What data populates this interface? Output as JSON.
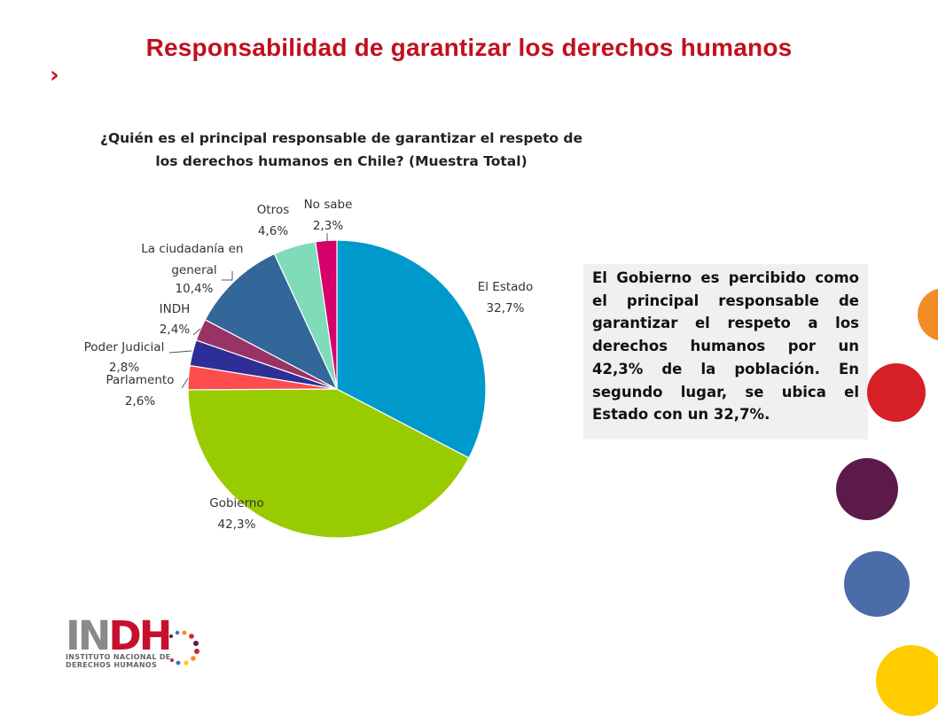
{
  "slide": {
    "title": "Responsabilidad de garantizar los derechos humanos",
    "chevron": "›"
  },
  "chart_title_line1": "¿Quién es el principal responsable de garantizar el respeto de",
  "chart_title_line2": "los derechos humanos  en Chile? (Muestra Total)",
  "chart_data": {
    "type": "pie",
    "title": "¿Quién es el principal responsable de garantizar el respeto de los derechos humanos  en Chile? (Muestra Total)",
    "slices": [
      {
        "name": "El Estado",
        "value": 32.7,
        "label": "32,7%",
        "color": "#0099cc"
      },
      {
        "name": "Gobierno",
        "value": 42.3,
        "label": "42,3%",
        "color": "#99cc00"
      },
      {
        "name": "Parlamento",
        "value": 2.6,
        "label": "2,6%",
        "color": "#ff4d4d"
      },
      {
        "name": "Poder Judicial",
        "value": 2.8,
        "label": "2,8%",
        "color": "#2e2e99"
      },
      {
        "name": "INDH",
        "value": 2.4,
        "label": "2,4%",
        "color": "#993366"
      },
      {
        "name": "La ciudadanía en general",
        "value": 10.4,
        "label": "10,4%",
        "color": "#336699"
      },
      {
        "name": "Otros",
        "value": 4.6,
        "label": "4,6%",
        "color": "#80dcb8"
      },
      {
        "name": "No sabe",
        "value": 2.3,
        "label": "2,3%",
        "color": "#d6006b"
      }
    ]
  },
  "info_text": "El Gobierno  es percibido como el principal responsable de garantizar el respeto a los derechos humanos por un 42,3% de la población. En segundo lugar, se ubica el Estado con un 32,7%.",
  "logo": {
    "word_gray": "IN",
    "word_red": "DH",
    "sub_line1": "INSTITUTO NACIONAL DE",
    "sub_line2": "DERECHOS HUMANOS"
  },
  "decor_colors": [
    "#f28c28",
    "#d61f26",
    "#5c1a4a",
    "#4a6ca8",
    "#ffcc00"
  ]
}
